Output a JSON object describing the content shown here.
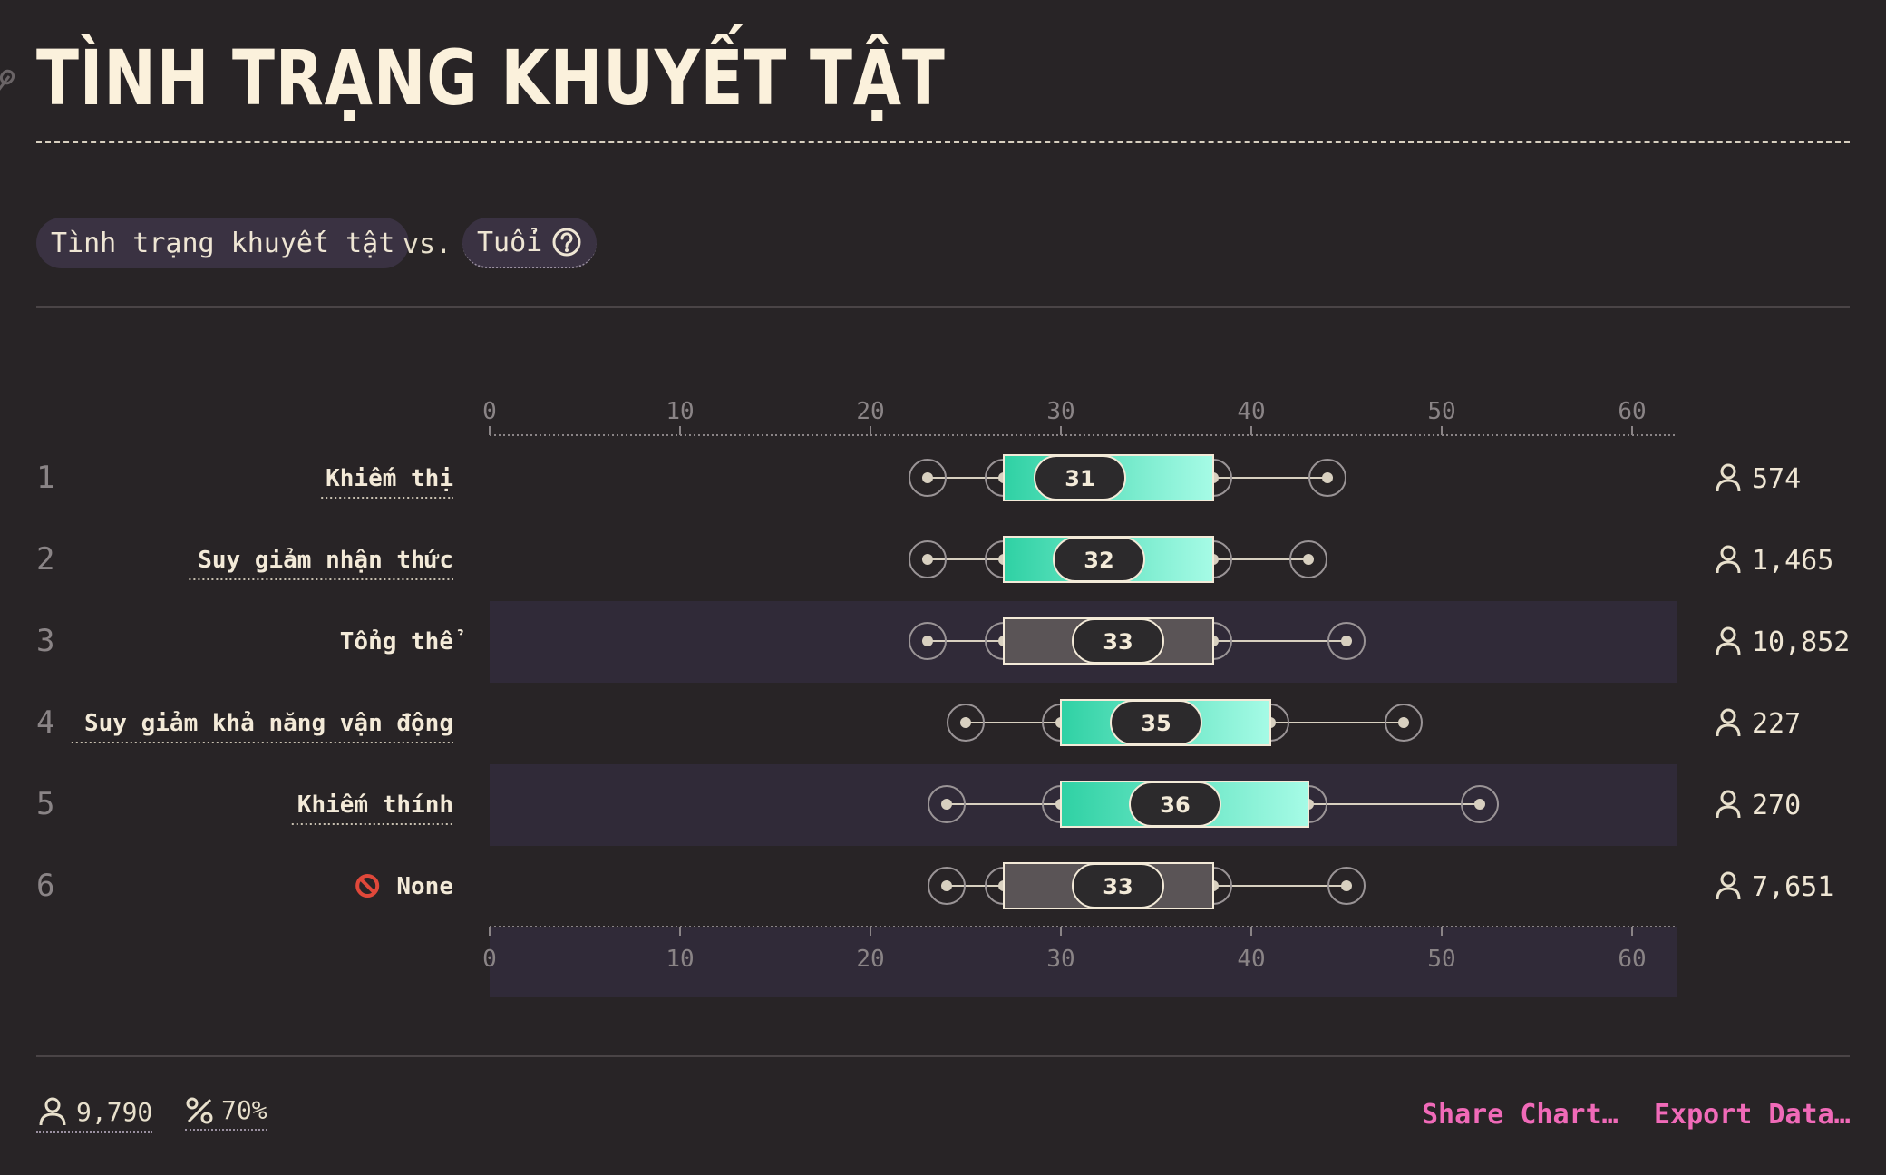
{
  "title": "TÌNH TRẠNG KHUYẾT TẬT",
  "filters": {
    "primary": "Tình trạng khuyết tật",
    "vs": "vs.",
    "secondary": "Tuổi"
  },
  "chart_data": {
    "type": "box",
    "axis_ticks": [
      0,
      10,
      20,
      30,
      40,
      50,
      60
    ],
    "xlim": [
      0,
      62
    ],
    "rows": [
      {
        "rank": "1",
        "label": "Khiếm thị",
        "whisker_low": 23,
        "q1": 27,
        "median": 31,
        "q3": 38,
        "whisker_high": 44,
        "count": "574",
        "highlight": true,
        "underline": true,
        "shaded": false
      },
      {
        "rank": "2",
        "label": "Suy giảm nhận thức",
        "whisker_low": 23,
        "q1": 27,
        "median": 32,
        "q3": 38,
        "whisker_high": 43,
        "count": "1,465",
        "highlight": true,
        "underline": true,
        "shaded": true
      },
      {
        "rank": "3",
        "label": "Tổng thể",
        "whisker_low": 23,
        "q1": 27,
        "median": 33,
        "q3": 38,
        "whisker_high": 45,
        "count": "10,852",
        "highlight": false,
        "underline": false,
        "shaded": false
      },
      {
        "rank": "4",
        "label": "Suy giảm khả năng vận động",
        "whisker_low": 25,
        "q1": 30,
        "median": 35,
        "q3": 41,
        "whisker_high": 48,
        "count": "227",
        "highlight": true,
        "underline": true,
        "shaded": true
      },
      {
        "rank": "5",
        "label": "Khiếm thính",
        "whisker_low": 24,
        "q1": 30,
        "median": 36,
        "q3": 43,
        "whisker_high": 52,
        "count": "270",
        "highlight": true,
        "underline": true,
        "shaded": false
      },
      {
        "rank": "6",
        "label": "None",
        "whisker_low": 24,
        "q1": 27,
        "median": 33,
        "q3": 38,
        "whisker_high": 45,
        "count": "7,651",
        "highlight": false,
        "underline": false,
        "shaded": true,
        "icon": "no-entry-icon"
      }
    ]
  },
  "footer": {
    "respondents": "9,790",
    "percent": "70%",
    "share": "Share Chart…",
    "export": "Export Data…"
  },
  "colors": {
    "accent_start": "#2fd1a4",
    "accent_end": "#a6fbe6",
    "neutral_box": "#5a5456",
    "row_shade": "#302a38",
    "link": "#f06ab8"
  }
}
